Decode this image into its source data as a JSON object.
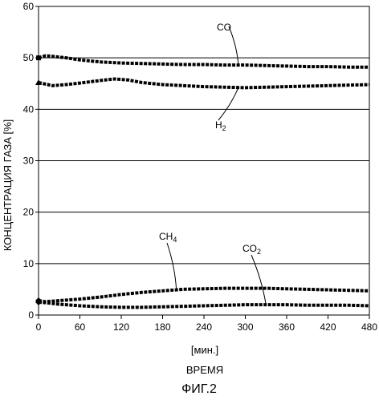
{
  "chart_data": {
    "type": "line",
    "title": "",
    "xlabel": "[мин.]",
    "xlabel2": "ВРЕМЯ",
    "ylabel": "КОНЦЕНТРАЦИЯ ГАЗА [%]",
    "figure_label": "ФИГ.2",
    "xlim": [
      0,
      480
    ],
    "ylim": [
      0,
      60
    ],
    "xticks": [
      0,
      60,
      120,
      180,
      240,
      300,
      360,
      420,
      480
    ],
    "yticks": [
      0,
      10,
      20,
      30,
      40,
      50,
      60
    ],
    "grid": "horizontal",
    "legend": "none",
    "series": [
      {
        "name": "CO",
        "marker": "square",
        "x": [
          0,
          10,
          20,
          40,
          60,
          90,
          120,
          150,
          180,
          210,
          240,
          270,
          300,
          330,
          360,
          390,
          420,
          450,
          480
        ],
        "y": [
          50.0,
          50.4,
          50.3,
          50.0,
          49.6,
          49.2,
          49.0,
          48.9,
          48.8,
          48.7,
          48.7,
          48.6,
          48.6,
          48.5,
          48.4,
          48.3,
          48.3,
          48.2,
          48.2
        ]
      },
      {
        "name": "H",
        "sub": "2",
        "marker": "triangle",
        "x": [
          0,
          10,
          20,
          40,
          60,
          90,
          110,
          130,
          150,
          180,
          210,
          240,
          270,
          300,
          330,
          360,
          390,
          420,
          450,
          480
        ],
        "y": [
          45.2,
          44.9,
          44.6,
          44.8,
          45.1,
          45.6,
          45.9,
          45.7,
          45.2,
          44.8,
          44.6,
          44.4,
          44.3,
          44.2,
          44.3,
          44.4,
          44.5,
          44.6,
          44.7,
          44.8
        ]
      },
      {
        "name": "CH",
        "sub": "4",
        "marker": "diamond",
        "x": [
          0,
          10,
          30,
          60,
          90,
          120,
          150,
          180,
          210,
          240,
          270,
          300,
          330,
          360,
          390,
          420,
          450,
          480
        ],
        "y": [
          2.8,
          2.6,
          2.8,
          3.1,
          3.5,
          4.0,
          4.4,
          4.7,
          5.0,
          5.1,
          5.2,
          5.2,
          5.2,
          5.1,
          5.0,
          4.9,
          4.8,
          4.7
        ]
      },
      {
        "name": "CO",
        "sub": "2",
        "marker": "diamond",
        "x": [
          0,
          10,
          30,
          60,
          90,
          120,
          150,
          180,
          210,
          240,
          270,
          300,
          330,
          360,
          390,
          420,
          450,
          480
        ],
        "y": [
          2.5,
          2.4,
          2.1,
          1.8,
          1.6,
          1.5,
          1.5,
          1.6,
          1.7,
          1.8,
          1.9,
          2.0,
          2.0,
          2.0,
          1.9,
          1.9,
          1.9,
          1.8
        ]
      }
    ],
    "annotations": [
      {
        "series": 0,
        "label": "CO",
        "sub": "",
        "at_x": 290
      },
      {
        "series": 1,
        "label": "H",
        "sub": "2",
        "at_x": 290
      },
      {
        "series": 2,
        "label": "CH",
        "sub": "4",
        "at_x": 200
      },
      {
        "series": 3,
        "label": "CO",
        "sub": "2",
        "at_x": 330
      }
    ]
  }
}
